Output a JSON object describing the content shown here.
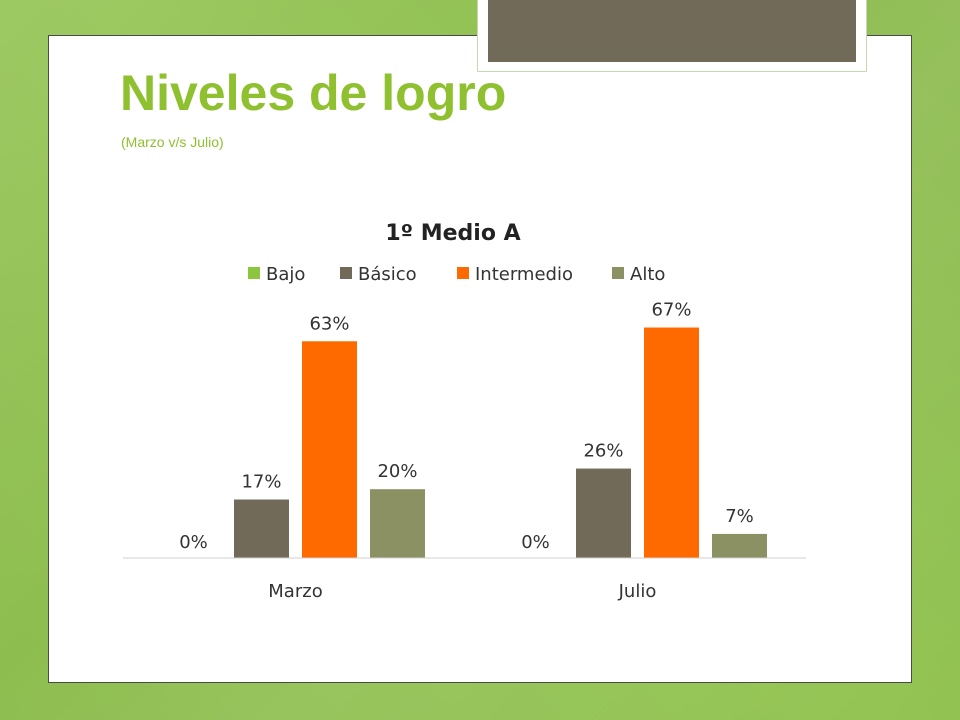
{
  "slide": {
    "title": "Niveles de logro",
    "subtitle": "(Marzo v/s Julio)"
  },
  "colors": {
    "background": "#93c452",
    "accent_title": "#8fc02f",
    "decor": "#716a58"
  },
  "chart_data": {
    "type": "bar",
    "title": "1º Medio A",
    "categories": [
      "Marzo",
      "Julio"
    ],
    "series": [
      {
        "name": "Bajo",
        "color": "#8cc63f",
        "values": [
          0,
          0
        ],
        "labels": [
          "0%",
          "0%"
        ]
      },
      {
        "name": "Básico",
        "color": "#716a58",
        "values": [
          17,
          26
        ],
        "labels": [
          "17%",
          "26%"
        ]
      },
      {
        "name": "Intermedio",
        "color": "#ff6a00",
        "values": [
          63,
          67
        ],
        "labels": [
          "63%",
          "67%"
        ]
      },
      {
        "name": "Alto",
        "color": "#8c9163",
        "values": [
          20,
          7
        ],
        "labels": [
          "20%",
          "7%"
        ]
      }
    ],
    "ylim": [
      0,
      75
    ],
    "grid": false,
    "legend_position": "top"
  }
}
